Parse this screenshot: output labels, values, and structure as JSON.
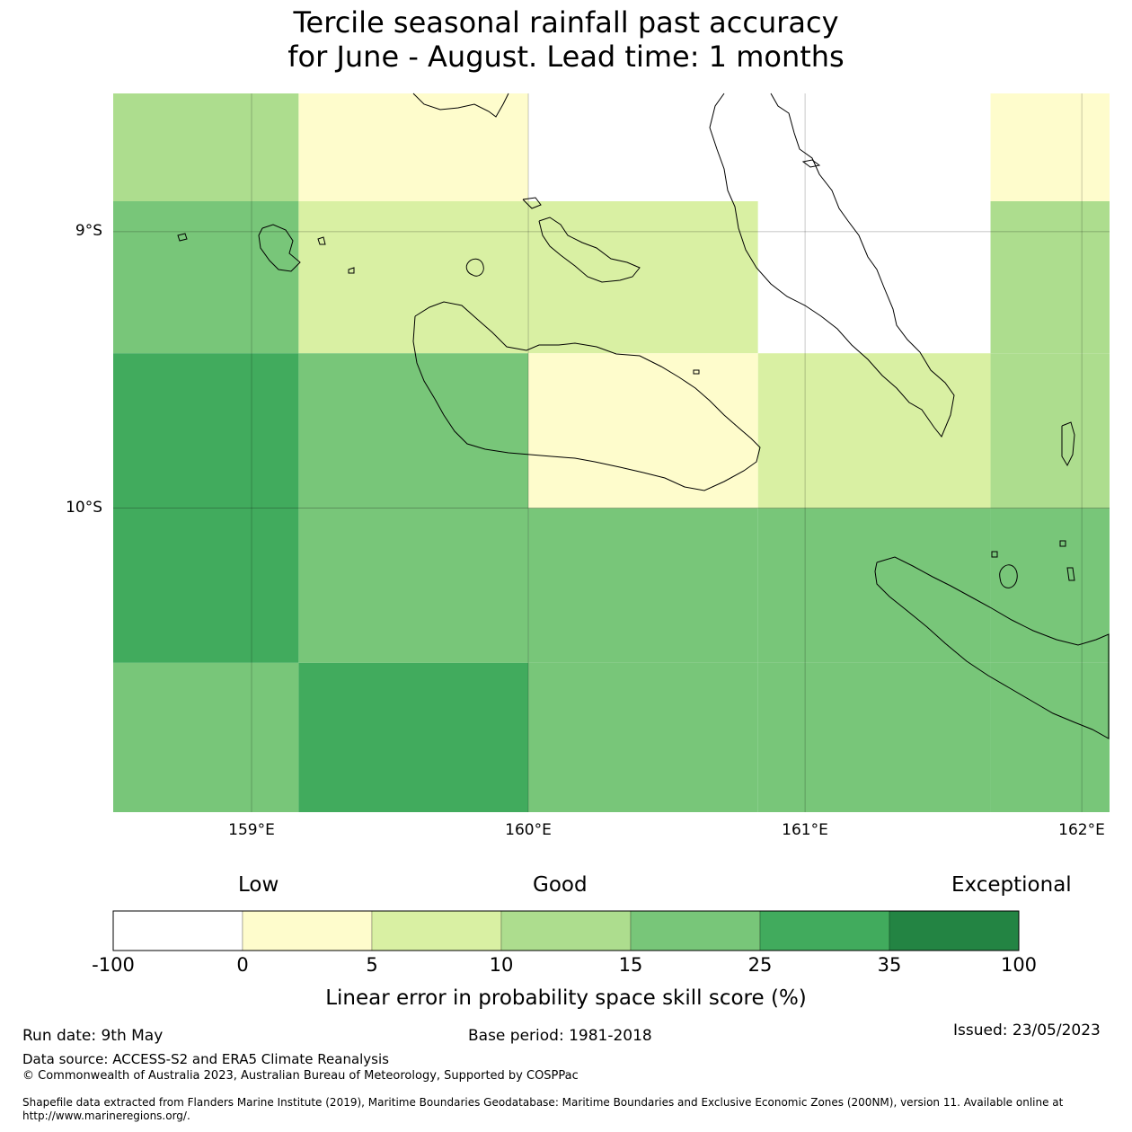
{
  "title": {
    "line1": "Tercile seasonal rainfall past accuracy",
    "line2": "for June - August. Lead time: 1 months"
  },
  "map": {
    "lat_ticks": [
      "9°S",
      "10°S"
    ],
    "lon_ticks": [
      "159°E",
      "160°E",
      "161°E",
      "162°E"
    ],
    "lon_range": [
      158.5,
      162.1
    ],
    "lat_range": [
      -11.1,
      -8.5
    ],
    "skill_grid": {
      "lon_edges": [
        158.5,
        159.17,
        160.0,
        160.83,
        161.67,
        162.1
      ],
      "lat_edges": [
        -8.5,
        -8.89,
        -9.44,
        -10.0,
        -10.56,
        -11.1
      ],
      "category_rows": [
        [
          3,
          1,
          0,
          0,
          1
        ],
        [
          4,
          2,
          2,
          0,
          3
        ],
        [
          5,
          4,
          1,
          2,
          3
        ],
        [
          5,
          4,
          4,
          4,
          4
        ],
        [
          4,
          5,
          4,
          4,
          4
        ]
      ]
    },
    "colors": [
      "#ffffff",
      "#fefccc",
      "#d9f0a3",
      "#addd8e",
      "#78c679",
      "#41ab5d",
      "#238443"
    ]
  },
  "colorbar": {
    "qualitative": {
      "low": "Low",
      "good": "Good",
      "exceptional": "Exceptional"
    },
    "boundaries": [
      "-100",
      "0",
      "5",
      "10",
      "15",
      "25",
      "35",
      "100"
    ],
    "label": "Linear error in probability space skill score (%)"
  },
  "footer": {
    "run_date": "Run date: 9th May",
    "base_period": "Base period: 1981-2018",
    "issued": "Issued: 23/05/2023",
    "data_source": "Data source: ACCESS-S2 and ERA5 Climate Reanalysis",
    "copyright": "© Commonwealth of Australia 2023, Australian Bureau of Meteorology, Supported by COSPPac",
    "shapefile": "Shapefile data extracted from Flanders Marine Institute (2019), Maritime Boundaries Geodatabase: Maritime Boundaries and Exclusive Economic Zones (200NM), version 11. Available online at http://www.marineregions.org/."
  }
}
